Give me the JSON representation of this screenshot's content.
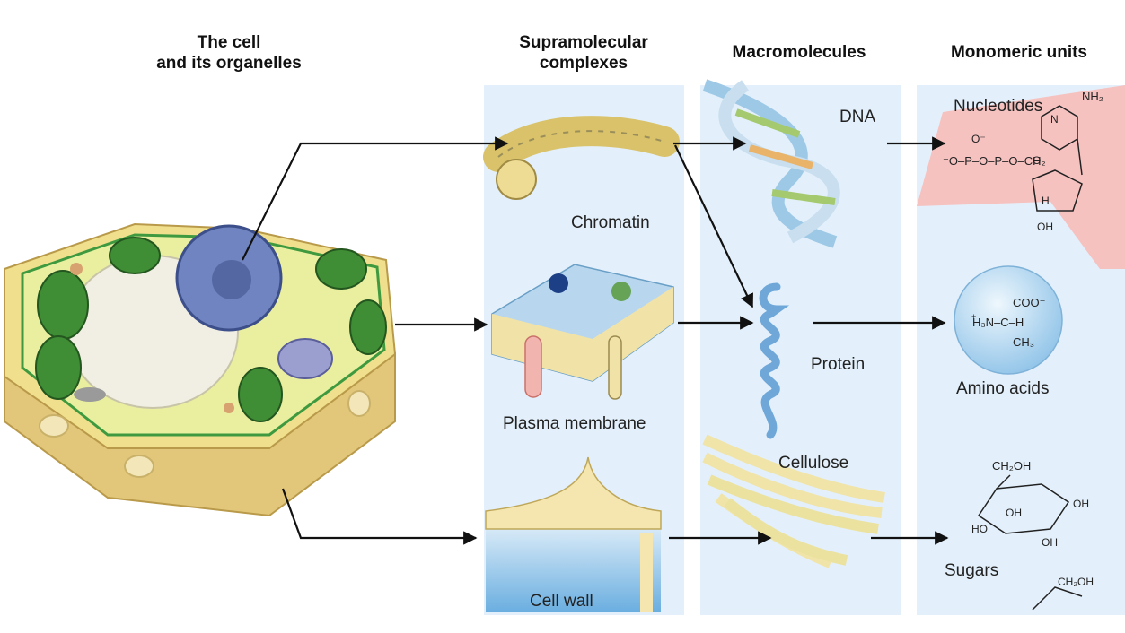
{
  "headers": {
    "cell": [
      "The cell",
      "and its organelles"
    ],
    "supra": [
      "Supramolecular",
      "complexes"
    ],
    "macro": "Macromolecules",
    "mono": "Monomeric units"
  },
  "supramolecular": {
    "chromatin": "Chromatin",
    "membrane": "Plasma membrane",
    "wall": "Cell wall"
  },
  "macromolecules": {
    "dna": "DNA",
    "protein": "Protein",
    "cellulose": "Cellulose"
  },
  "monomers": {
    "nucleotides": "Nucleotides",
    "amino": "Amino acids",
    "sugars": "Sugars"
  },
  "chem": {
    "nh2": "NH₂",
    "ominus": "O⁻",
    "phosphate": "⁻O–P–O–P–O–CH₂",
    "o": "O",
    "n": "N",
    "h": "H",
    "oh": "OH",
    "coo": "COO⁻",
    "h3n": "H₃N–C–H",
    "plus": "+",
    "ch3": "CH₃",
    "ch2oh": "CH₂OH",
    "ho": "HO"
  },
  "colors": {
    "panel": "#e3f0fb",
    "arrow": "#111111",
    "nucleotide_bg": "#f6c2c0",
    "sphere": "#a9d2ee"
  }
}
